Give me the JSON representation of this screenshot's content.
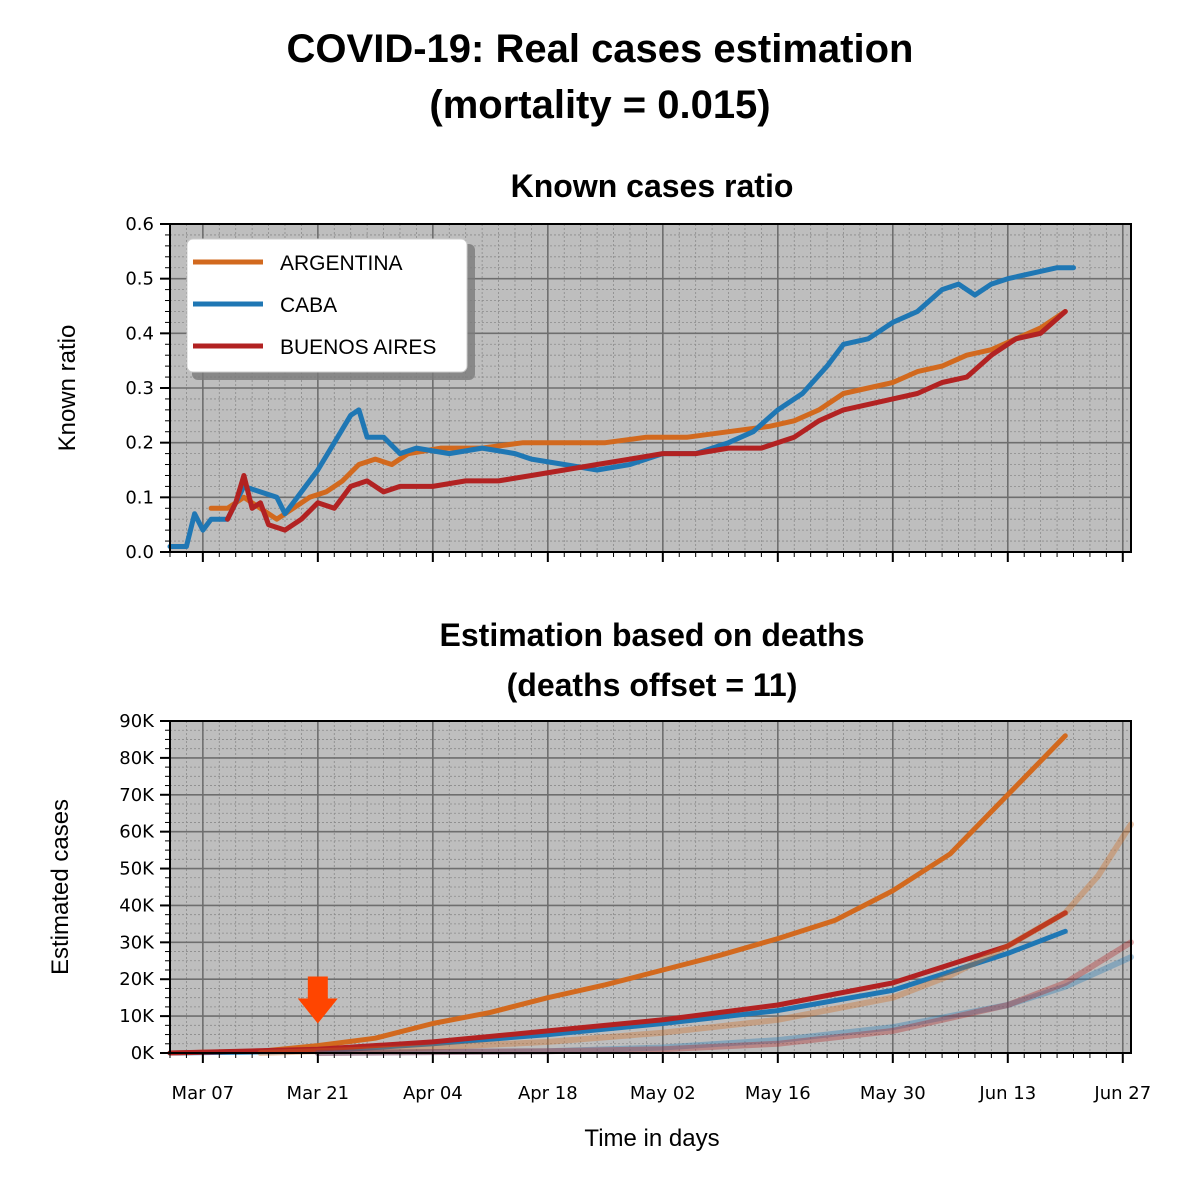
{
  "figure": {
    "title_line1": "COVID-19: Real cases estimation",
    "title_line2": "(mortality = 0.015)"
  },
  "colors": {
    "ARGENTINA": "#d2691e",
    "CABA": "#1f77b4",
    "BUENOS AIRES": "#b22222",
    "plot_bg": "#bebebe",
    "arrow": "#ff4500"
  },
  "chart_data": [
    {
      "type": "line",
      "title": "Known cases ratio",
      "xlabel": "",
      "ylabel": "Known ratio",
      "ylim": [
        0,
        0.6
      ],
      "yticks": [
        "0.0",
        "0.1",
        "0.2",
        "0.3",
        "0.4",
        "0.5",
        "0.6"
      ],
      "xlim": [
        "2020-03-03",
        "2020-06-28"
      ],
      "xticks": [
        "Mar 07",
        "Mar 21",
        "Apr 04",
        "Apr 18",
        "May 02",
        "May 16",
        "May 30",
        "Jun 13",
        "Jun 27"
      ],
      "xtick_labels_visible": false,
      "grid": true,
      "legend": {
        "placement": "top-left",
        "entries": [
          "ARGENTINA",
          "CABA",
          "BUENOS AIRES"
        ]
      },
      "series": [
        {
          "name": "ARGENTINA",
          "points": [
            [
              "2020-03-08",
              0.08
            ],
            [
              "2020-03-10",
              0.08
            ],
            [
              "2020-03-12",
              0.1
            ],
            [
              "2020-03-14",
              0.08
            ],
            [
              "2020-03-16",
              0.06
            ],
            [
              "2020-03-18",
              0.08
            ],
            [
              "2020-03-20",
              0.1
            ],
            [
              "2020-03-22",
              0.11
            ],
            [
              "2020-03-24",
              0.13
            ],
            [
              "2020-03-26",
              0.16
            ],
            [
              "2020-03-28",
              0.17
            ],
            [
              "2020-03-30",
              0.16
            ],
            [
              "2020-04-01",
              0.18
            ],
            [
              "2020-04-05",
              0.19
            ],
            [
              "2020-04-10",
              0.19
            ],
            [
              "2020-04-15",
              0.2
            ],
            [
              "2020-04-20",
              0.2
            ],
            [
              "2020-04-25",
              0.2
            ],
            [
              "2020-04-30",
              0.21
            ],
            [
              "2020-05-05",
              0.21
            ],
            [
              "2020-05-10",
              0.22
            ],
            [
              "2020-05-15",
              0.23
            ],
            [
              "2020-05-18",
              0.24
            ],
            [
              "2020-05-21",
              0.26
            ],
            [
              "2020-05-24",
              0.29
            ],
            [
              "2020-05-27",
              0.3
            ],
            [
              "2020-05-30",
              0.31
            ],
            [
              "2020-06-02",
              0.33
            ],
            [
              "2020-06-05",
              0.34
            ],
            [
              "2020-06-08",
              0.36
            ],
            [
              "2020-06-11",
              0.37
            ],
            [
              "2020-06-14",
              0.39
            ],
            [
              "2020-06-17",
              0.41
            ],
            [
              "2020-06-20",
              0.44
            ]
          ]
        },
        {
          "name": "CABA",
          "points": [
            [
              "2020-03-03",
              0.01
            ],
            [
              "2020-03-05",
              0.01
            ],
            [
              "2020-03-06",
              0.07
            ],
            [
              "2020-03-07",
              0.04
            ],
            [
              "2020-03-08",
              0.06
            ],
            [
              "2020-03-10",
              0.06
            ],
            [
              "2020-03-12",
              0.12
            ],
            [
              "2020-03-14",
              0.11
            ],
            [
              "2020-03-16",
              0.1
            ],
            [
              "2020-03-17",
              0.07
            ],
            [
              "2020-03-19",
              0.11
            ],
            [
              "2020-03-21",
              0.15
            ],
            [
              "2020-03-23",
              0.2
            ],
            [
              "2020-03-25",
              0.25
            ],
            [
              "2020-03-26",
              0.26
            ],
            [
              "2020-03-27",
              0.21
            ],
            [
              "2020-03-29",
              0.21
            ],
            [
              "2020-03-31",
              0.18
            ],
            [
              "2020-04-02",
              0.19
            ],
            [
              "2020-04-06",
              0.18
            ],
            [
              "2020-04-10",
              0.19
            ],
            [
              "2020-04-14",
              0.18
            ],
            [
              "2020-04-16",
              0.17
            ],
            [
              "2020-04-20",
              0.16
            ],
            [
              "2020-04-24",
              0.15
            ],
            [
              "2020-04-28",
              0.16
            ],
            [
              "2020-05-02",
              0.18
            ],
            [
              "2020-05-06",
              0.18
            ],
            [
              "2020-05-10",
              0.2
            ],
            [
              "2020-05-13",
              0.22
            ],
            [
              "2020-05-16",
              0.26
            ],
            [
              "2020-05-19",
              0.29
            ],
            [
              "2020-05-22",
              0.34
            ],
            [
              "2020-05-24",
              0.38
            ],
            [
              "2020-05-27",
              0.39
            ],
            [
              "2020-05-30",
              0.42
            ],
            [
              "2020-06-02",
              0.44
            ],
            [
              "2020-06-05",
              0.48
            ],
            [
              "2020-06-07",
              0.49
            ],
            [
              "2020-06-09",
              0.47
            ],
            [
              "2020-06-11",
              0.49
            ],
            [
              "2020-06-13",
              0.5
            ],
            [
              "2020-06-16",
              0.51
            ],
            [
              "2020-06-19",
              0.52
            ],
            [
              "2020-06-21",
              0.52
            ]
          ]
        },
        {
          "name": "BUENOS AIRES",
          "points": [
            [
              "2020-03-10",
              0.06
            ],
            [
              "2020-03-11",
              0.09
            ],
            [
              "2020-03-12",
              0.14
            ],
            [
              "2020-03-13",
              0.08
            ],
            [
              "2020-03-14",
              0.09
            ],
            [
              "2020-03-15",
              0.05
            ],
            [
              "2020-03-17",
              0.04
            ],
            [
              "2020-03-19",
              0.06
            ],
            [
              "2020-03-21",
              0.09
            ],
            [
              "2020-03-23",
              0.08
            ],
            [
              "2020-03-25",
              0.12
            ],
            [
              "2020-03-27",
              0.13
            ],
            [
              "2020-03-29",
              0.11
            ],
            [
              "2020-03-31",
              0.12
            ],
            [
              "2020-04-04",
              0.12
            ],
            [
              "2020-04-08",
              0.13
            ],
            [
              "2020-04-12",
              0.13
            ],
            [
              "2020-04-16",
              0.14
            ],
            [
              "2020-04-20",
              0.15
            ],
            [
              "2020-04-24",
              0.16
            ],
            [
              "2020-04-28",
              0.17
            ],
            [
              "2020-05-02",
              0.18
            ],
            [
              "2020-05-06",
              0.18
            ],
            [
              "2020-05-10",
              0.19
            ],
            [
              "2020-05-14",
              0.19
            ],
            [
              "2020-05-18",
              0.21
            ],
            [
              "2020-05-21",
              0.24
            ],
            [
              "2020-05-24",
              0.26
            ],
            [
              "2020-05-27",
              0.27
            ],
            [
              "2020-05-30",
              0.28
            ],
            [
              "2020-06-02",
              0.29
            ],
            [
              "2020-06-05",
              0.31
            ],
            [
              "2020-06-08",
              0.32
            ],
            [
              "2020-06-11",
              0.36
            ],
            [
              "2020-06-14",
              0.39
            ],
            [
              "2020-06-17",
              0.4
            ],
            [
              "2020-06-20",
              0.44
            ]
          ]
        }
      ]
    },
    {
      "type": "line",
      "title_line1": "Estimation based on deaths",
      "title_line2": "(deaths offset = 11)",
      "xlabel": "Time in days",
      "ylabel": "Estimated cases",
      "ylim": [
        0,
        90000
      ],
      "yticks": [
        "0K",
        "10K",
        "20K",
        "30K",
        "40K",
        "50K",
        "60K",
        "70K",
        "80K",
        "90K"
      ],
      "xlim": [
        "2020-03-03",
        "2020-06-28"
      ],
      "xticks": [
        "Mar 07",
        "Mar 21",
        "Apr 04",
        "Apr 18",
        "May 02",
        "May 16",
        "May 30",
        "Jun 13",
        "Jun 27"
      ],
      "grid": true,
      "annotation": {
        "type": "arrow-down",
        "date": "2020-03-21",
        "value": 8000
      },
      "series": [
        {
          "name": "ARGENTINA",
          "points": [
            [
              "2020-03-03",
              0
            ],
            [
              "2020-03-14",
              500
            ],
            [
              "2020-03-21",
              2000
            ],
            [
              "2020-03-28",
              4000
            ],
            [
              "2020-04-04",
              8000
            ],
            [
              "2020-04-11",
              11000
            ],
            [
              "2020-04-18",
              15000
            ],
            [
              "2020-04-25",
              18500
            ],
            [
              "2020-05-02",
              22500
            ],
            [
              "2020-05-09",
              26500
            ],
            [
              "2020-05-16",
              31000
            ],
            [
              "2020-05-23",
              36000
            ],
            [
              "2020-05-30",
              44000
            ],
            [
              "2020-06-06",
              54000
            ],
            [
              "2020-06-13",
              70000
            ],
            [
              "2020-06-20",
              86000
            ]
          ]
        },
        {
          "name": "CABA",
          "points": [
            [
              "2020-03-03",
              0
            ],
            [
              "2020-03-21",
              500
            ],
            [
              "2020-04-04",
              2500
            ],
            [
              "2020-04-18",
              5000
            ],
            [
              "2020-05-02",
              8000
            ],
            [
              "2020-05-16",
              11500
            ],
            [
              "2020-05-30",
              17000
            ],
            [
              "2020-06-06",
              22000
            ],
            [
              "2020-06-13",
              27000
            ],
            [
              "2020-06-20",
              33000
            ]
          ]
        },
        {
          "name": "BUENOS AIRES",
          "points": [
            [
              "2020-03-03",
              0
            ],
            [
              "2020-03-21",
              1000
            ],
            [
              "2020-04-04",
              3000
            ],
            [
              "2020-04-18",
              6000
            ],
            [
              "2020-05-02",
              9000
            ],
            [
              "2020-05-16",
              13000
            ],
            [
              "2020-05-30",
              19000
            ],
            [
              "2020-06-06",
              24000
            ],
            [
              "2020-06-13",
              29000
            ],
            [
              "2020-06-20",
              38000
            ]
          ]
        },
        {
          "name": "ARGENTINA",
          "faded": true,
          "points": [
            [
              "2020-03-14",
              0
            ],
            [
              "2020-04-04",
              1500
            ],
            [
              "2020-04-18",
              3000
            ],
            [
              "2020-05-02",
              5500
            ],
            [
              "2020-05-16",
              9000
            ],
            [
              "2020-05-30",
              15000
            ],
            [
              "2020-06-06",
              21000
            ],
            [
              "2020-06-13",
              29000
            ],
            [
              "2020-06-20",
              38000
            ],
            [
              "2020-06-24",
              48000
            ],
            [
              "2020-06-28",
              62000
            ]
          ]
        },
        {
          "name": "CABA",
          "faded": true,
          "points": [
            [
              "2020-03-21",
              0
            ],
            [
              "2020-04-18",
              500
            ],
            [
              "2020-05-02",
              1500
            ],
            [
              "2020-05-16",
              3500
            ],
            [
              "2020-05-30",
              7000
            ],
            [
              "2020-06-13",
              13000
            ],
            [
              "2020-06-20",
              18000
            ],
            [
              "2020-06-28",
              26000
            ]
          ]
        },
        {
          "name": "BUENOS AIRES",
          "faded": true,
          "points": [
            [
              "2020-03-21",
              0
            ],
            [
              "2020-04-18",
              500
            ],
            [
              "2020-05-02",
              1000
            ],
            [
              "2020-05-16",
              2500
            ],
            [
              "2020-05-30",
              6000
            ],
            [
              "2020-06-13",
              13000
            ],
            [
              "2020-06-20",
              19000
            ],
            [
              "2020-06-28",
              30000
            ]
          ]
        }
      ]
    }
  ]
}
